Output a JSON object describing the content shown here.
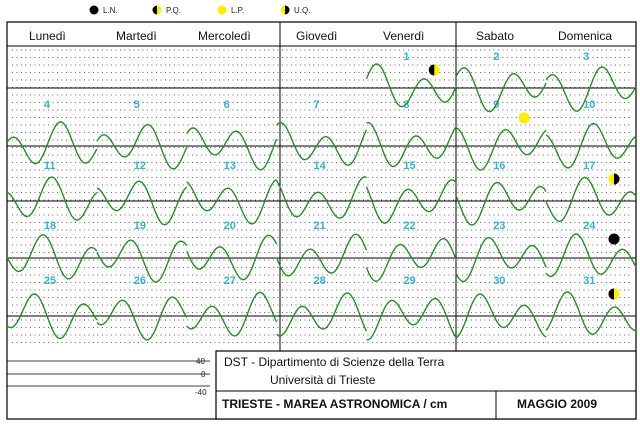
{
  "legend": [
    {
      "phase": "new",
      "label": "L.N."
    },
    {
      "phase": "first-quarter",
      "label": "P.Q."
    },
    {
      "phase": "full",
      "label": "L.P."
    },
    {
      "phase": "last-quarter",
      "label": "U.Q."
    }
  ],
  "days": [
    "Lunedì",
    "Martedì",
    "Mercoledì",
    "Giovedì",
    "Venerdì",
    "Sabato",
    "Domenica"
  ],
  "scale": {
    "ticks": [
      "40",
      "0",
      "-40"
    ]
  },
  "info": {
    "line1": "DST - Dipartimento di Scienze della Terra",
    "line2": "Università di Trieste",
    "title": "TRIESTE - MAREA ASTRONOMICA / cm",
    "month": "MAGGIO 2009"
  },
  "colors": {
    "curve": "#2a8a2a",
    "date_label": "#33b3cc",
    "moon_yellow": "#ffee00",
    "grid": "#000000"
  },
  "chart_data": {
    "type": "line",
    "title": "TRIESTE - MAREA ASTRONOMICA / cm",
    "subtitle": "MAGGIO 2009",
    "ylabel": "",
    "y_ticks": [
      40,
      0,
      -40
    ],
    "ylim": [
      -60,
      60
    ],
    "x_categories": [
      "Lunedì",
      "Martedì",
      "Mercoledì",
      "Giovedì",
      "Venerdì",
      "Sabato",
      "Domenica"
    ],
    "weeks": [
      {
        "start_day": 4,
        "dates": [
          1,
          2,
          3
        ]
      },
      {
        "start_day": 0,
        "dates": [
          4,
          5,
          6,
          7,
          8,
          9,
          10
        ]
      },
      {
        "start_day": 0,
        "dates": [
          11,
          12,
          13,
          14,
          15,
          16,
          17
        ]
      },
      {
        "start_day": 0,
        "dates": [
          18,
          19,
          20,
          21,
          22,
          23,
          24
        ]
      },
      {
        "start_day": 0,
        "dates": [
          25,
          26,
          27,
          28,
          29,
          30,
          31
        ]
      }
    ],
    "moon_phases": [
      {
        "date": 1,
        "phase": "first-quarter"
      },
      {
        "date": 9,
        "phase": "full"
      },
      {
        "date": 17,
        "phase": "last-quarter"
      },
      {
        "date": 24,
        "phase": "new"
      },
      {
        "date": 31,
        "phase": "first-quarter"
      }
    ]
  }
}
